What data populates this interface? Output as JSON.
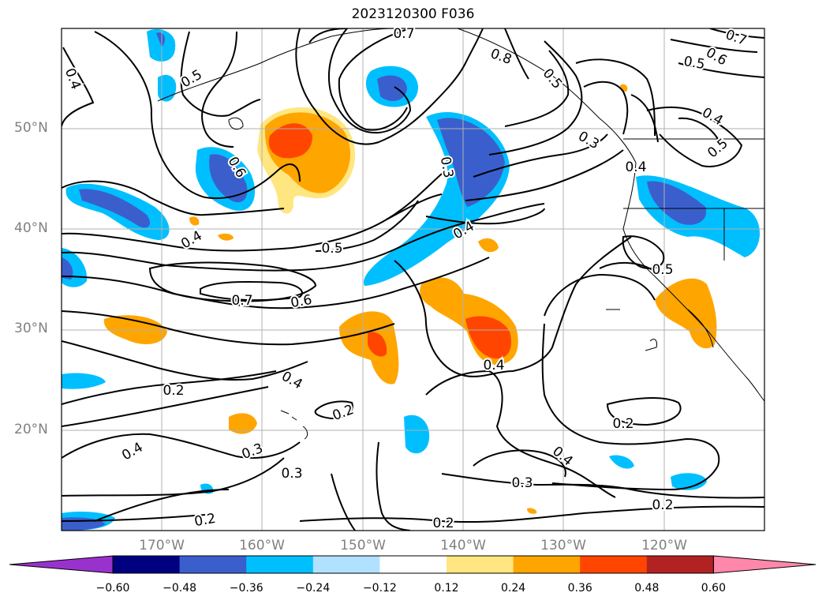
{
  "title": "2023120300 F036",
  "lat_labels": [
    "50°N",
    "40°N",
    "30°N",
    "20°N"
  ],
  "lon_labels": [
    "170°W",
    "160°W",
    "150°W",
    "140°W",
    "130°W",
    "120°W"
  ],
  "colorbar": {
    "ticks": [
      "−0.60",
      "−0.48",
      "−0.36",
      "−0.24",
      "−0.12",
      "0.12",
      "0.24",
      "0.36",
      "0.48",
      "0.60"
    ],
    "colors": [
      "#9932cc",
      "#000080",
      "#3a5fcd",
      "#00bfff",
      "#b0e2ff",
      "#ffffff",
      "#ffe680",
      "#ffa500",
      "#ff4500",
      "#b22222",
      "#ff88aa"
    ]
  },
  "contour_labels": [
    "0.7",
    "0.4",
    "0.5",
    "0.8",
    "0.5",
    "0.6",
    "0.7",
    "0.5",
    "0.4",
    "0.5",
    "0.4",
    "0.3",
    "0.6",
    "0.4",
    "0.4",
    "0.5",
    "0.5",
    "0.7",
    "0.6",
    "0.4",
    "0.2",
    "0.4",
    "0.2",
    "0.4",
    "0.3",
    "0.3",
    "0.4",
    "0.3",
    "0.2",
    "0.2",
    "0.2",
    "0.2",
    "0.3"
  ],
  "colors": {
    "grid": "#b0b0b0",
    "contour": "#000000",
    "axis_text": "#808080"
  }
}
